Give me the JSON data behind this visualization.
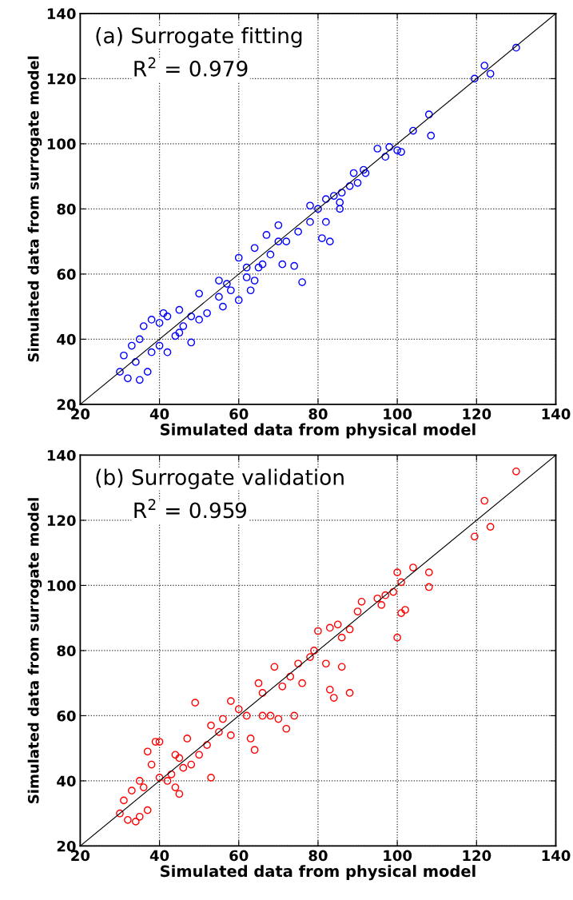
{
  "chart_data": [
    {
      "type": "scatter",
      "xlabel": "Simulated data from physical model",
      "ylabel": "Simulated data from surrogate model",
      "annotations": [
        "(a) Surrogate fitting",
        "R$^{2}$ = 0.979"
      ],
      "xlim": [
        20,
        140
      ],
      "ylim": [
        20,
        140
      ],
      "xticks": [
        20,
        40,
        60,
        80,
        100,
        120,
        140
      ],
      "yticks": [
        20,
        40,
        60,
        80,
        100,
        120,
        140
      ],
      "grid": true,
      "marker": "circle",
      "series": [
        {
          "color": "#0000ff",
          "x": [
            130,
            122,
            119.5,
            123.5,
            108,
            108.5,
            104,
            95,
            100,
            101,
            97,
            91.5,
            90,
            89,
            85.5,
            85.5,
            82,
            81,
            83,
            76,
            74,
            71,
            82,
            78,
            70,
            67,
            64,
            60,
            55,
            50,
            45,
            40,
            38,
            36,
            35,
            33,
            31,
            30,
            32,
            35,
            37,
            45,
            48,
            40,
            42,
            52,
            55,
            58,
            62,
            65,
            68,
            72,
            75,
            78,
            80,
            84,
            88,
            92,
            60,
            64,
            66,
            56,
            44,
            50,
            41,
            42,
            34,
            38,
            46,
            48,
            57,
            62,
            70,
            63,
            86,
            98
          ],
          "values": [
            129.5,
            124,
            120,
            121.5,
            109,
            102.5,
            104,
            98.5,
            98,
            97.5,
            96,
            92,
            88,
            91,
            82,
            80,
            76,
            71,
            70,
            57.5,
            62.5,
            63,
            83,
            81,
            75,
            72,
            68,
            65,
            58,
            54,
            49,
            45,
            46,
            44,
            40,
            38,
            35,
            30,
            28,
            27.5,
            30,
            42,
            39,
            38,
            36,
            48,
            53,
            55,
            59,
            62,
            66,
            70,
            73,
            76,
            80,
            84,
            87,
            91,
            52,
            58,
            63,
            50,
            41,
            46,
            48,
            47,
            33,
            36,
            44,
            47,
            57,
            62,
            70,
            55,
            85,
            99
          ]
        },
        {
          "type": "line",
          "color": "#000000",
          "marker": "none",
          "x": [
            20,
            140
          ],
          "values": [
            20,
            140
          ]
        }
      ]
    },
    {
      "type": "scatter",
      "xlabel": "Simulated data from physical model",
      "ylabel": "Simulated data from surrogate model",
      "annotations": [
        "(b) Surrogate validation",
        "R$^{2}$ = 0.959"
      ],
      "xlim": [
        20,
        140
      ],
      "ylim": [
        20,
        140
      ],
      "xticks": [
        20,
        40,
        60,
        80,
        100,
        120,
        140
      ],
      "yticks": [
        20,
        40,
        60,
        80,
        100,
        120,
        140
      ],
      "grid": true,
      "marker": "circle",
      "series": [
        {
          "color": "#ff0000",
          "x": [
            130,
            122,
            123.5,
            119.5,
            108,
            108,
            104,
            100,
            99,
            101,
            96,
            97,
            102,
            101,
            100,
            91,
            90,
            88,
            85,
            83,
            80,
            79,
            82,
            86,
            83,
            84,
            88,
            76,
            71,
            69,
            65,
            58,
            56,
            49,
            58,
            66,
            70,
            74,
            72,
            68,
            63,
            64,
            53,
            45,
            46,
            43,
            55,
            60,
            75,
            78,
            62,
            38,
            37,
            40,
            39,
            35,
            33,
            31,
            30,
            32,
            35,
            34,
            37,
            44,
            45,
            42,
            50,
            52,
            48,
            47,
            44,
            36,
            40,
            86,
            95,
            53,
            66,
            73
          ],
          "values": [
            135,
            126,
            118,
            115,
            104,
            99.5,
            105.5,
            104,
            98,
            101,
            94,
            97,
            92.5,
            91.5,
            84,
            95,
            92,
            86.5,
            88,
            87,
            86,
            80,
            76,
            75,
            68,
            65.5,
            67,
            70,
            69,
            75,
            70,
            64.5,
            59,
            64,
            54,
            60,
            59,
            60,
            56,
            60,
            53,
            49.5,
            41,
            47,
            44,
            42,
            55,
            62,
            76,
            78,
            60,
            45,
            49,
            52,
            52,
            40,
            37,
            34,
            30,
            28,
            29,
            27.5,
            31,
            38,
            36,
            40,
            48,
            51,
            45,
            53,
            48,
            38,
            41,
            84,
            96,
            57,
            67,
            72
          ]
        },
        {
          "type": "line",
          "color": "#000000",
          "marker": "none",
          "x": [
            20,
            140
          ],
          "values": [
            20,
            140
          ]
        }
      ]
    }
  ]
}
